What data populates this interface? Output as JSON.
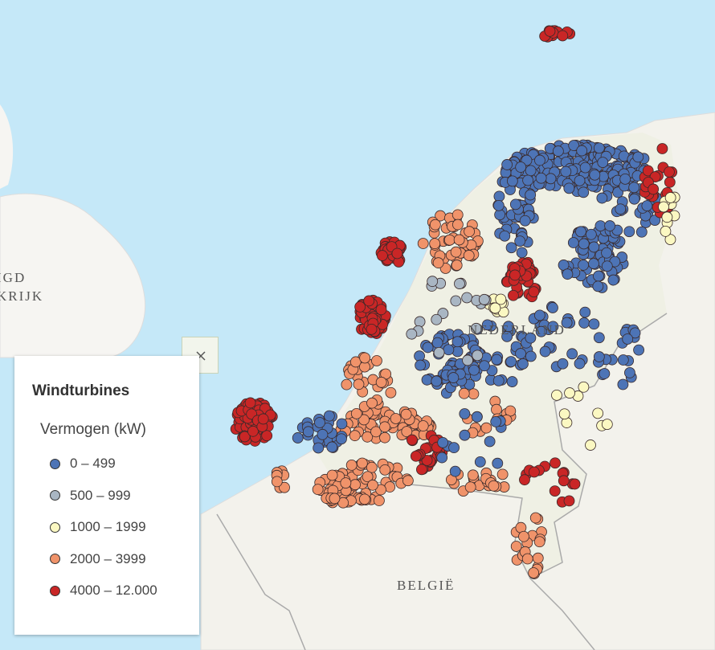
{
  "places": [
    "IGD",
    "KRIJK",
    "NEDERLAND",
    "BELGIË"
  ],
  "legend": {
    "title": "Windturbines",
    "subtitle": "Vermogen (kW)",
    "classes": [
      {
        "label": "0 – 499",
        "color": "#4d74b6"
      },
      {
        "label": "500 – 999",
        "color": "#a9b6c3"
      },
      {
        "label": "1000 – 1999",
        "color": "#fbf8c2"
      },
      {
        "label": "2000 – 3999",
        "color": "#f0936a"
      },
      {
        "label": "4000 – 12.000",
        "color": "#c92626"
      }
    ]
  }
}
